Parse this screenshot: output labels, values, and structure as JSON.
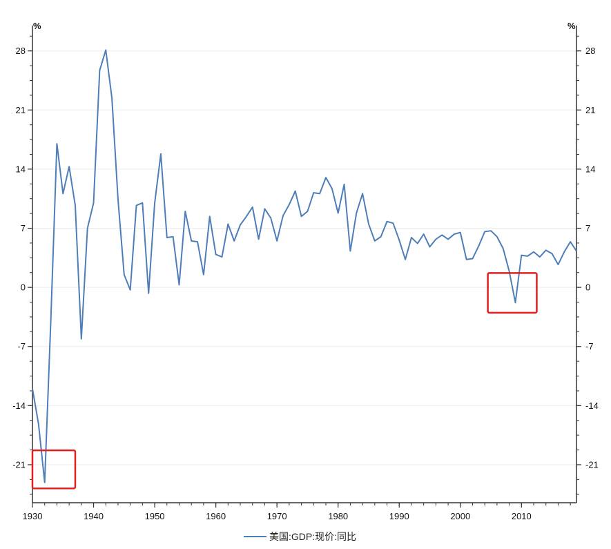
{
  "chart_data": {
    "type": "line",
    "y_unit_left": "%",
    "y_unit_right": "%",
    "ylim": [
      -25.5,
      31
    ],
    "yticks": [
      -21,
      -14,
      -7,
      0,
      7,
      14,
      21,
      28
    ],
    "xlim": [
      1930,
      2019
    ],
    "xticks": [
      1930,
      1940,
      1950,
      1960,
      1970,
      1980,
      1990,
      2000,
      2010
    ],
    "grid": true,
    "legend_position": "bottom-center",
    "colors": {
      "line": "#4f7db8",
      "highlight_box": "#e02020",
      "grid": "#ececec",
      "axis": "#333333"
    },
    "series": [
      {
        "name": "美国:GDP:现价:同比",
        "x": [
          1930,
          1931,
          1932,
          1933,
          1934,
          1935,
          1936,
          1937,
          1938,
          1939,
          1940,
          1941,
          1942,
          1943,
          1944,
          1945,
          1946,
          1947,
          1948,
          1949,
          1950,
          1951,
          1952,
          1953,
          1954,
          1955,
          1956,
          1957,
          1958,
          1959,
          1960,
          1961,
          1962,
          1963,
          1964,
          1965,
          1966,
          1967,
          1968,
          1969,
          1970,
          1971,
          1972,
          1973,
          1974,
          1975,
          1976,
          1977,
          1978,
          1979,
          1980,
          1981,
          1982,
          1983,
          1984,
          1985,
          1986,
          1987,
          1988,
          1989,
          1990,
          1991,
          1992,
          1993,
          1994,
          1995,
          1996,
          1997,
          1998,
          1999,
          2000,
          2001,
          2002,
          2003,
          2004,
          2005,
          2006,
          2007,
          2008,
          2009,
          2010,
          2011,
          2012,
          2013,
          2014,
          2015,
          2016,
          2017,
          2018,
          2019
        ],
        "values": [
          -12.0,
          -16.2,
          -23.1,
          -4.0,
          17.0,
          11.1,
          14.3,
          9.7,
          -6.1,
          7.0,
          10.0,
          25.7,
          28.1,
          22.4,
          10.4,
          1.5,
          -0.3,
          9.7,
          10.0,
          -0.7,
          10.0,
          15.8,
          5.9,
          6.0,
          0.3,
          9.0,
          5.5,
          5.4,
          1.5,
          8.4,
          3.9,
          3.6,
          7.5,
          5.5,
          7.4,
          8.4,
          9.5,
          5.7,
          9.3,
          8.2,
          5.5,
          8.5,
          9.8,
          11.4,
          8.4,
          9.0,
          11.2,
          11.1,
          13.0,
          11.7,
          8.8,
          12.2,
          4.3,
          8.8,
          11.1,
          7.5,
          5.5,
          6.0,
          7.8,
          7.6,
          5.6,
          3.3,
          5.9,
          5.2,
          6.3,
          4.8,
          5.7,
          6.2,
          5.7,
          6.3,
          6.5,
          3.3,
          3.4,
          4.9,
          6.6,
          6.7,
          6.0,
          4.6,
          1.9,
          -1.8,
          3.8,
          3.7,
          4.2,
          3.6,
          4.4,
          4.0,
          2.7,
          4.2,
          5.4,
          4.3
        ]
      }
    ],
    "highlights": [
      {
        "x_from": 1930,
        "x_to": 1937,
        "y_from": -19.3,
        "y_to": -23.8
      },
      {
        "x_from": 2004.5,
        "x_to": 2012.5,
        "y_from": 1.7,
        "y_to": -3.0
      }
    ]
  }
}
